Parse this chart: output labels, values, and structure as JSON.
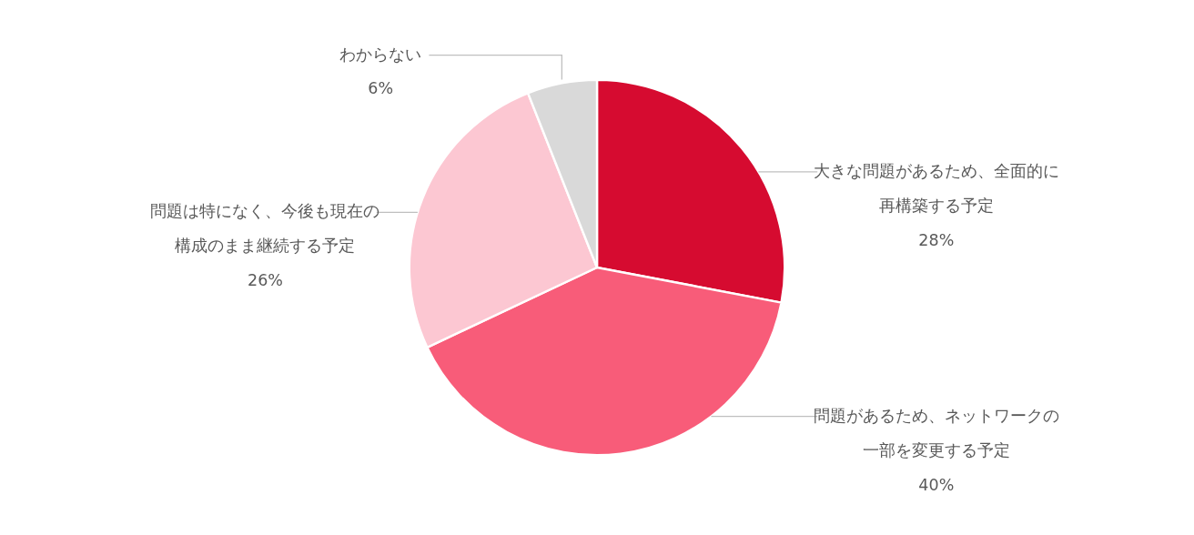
{
  "chart_data": {
    "type": "pie",
    "categories": [
      "大きな問題があるため、全面的に再構築する予定",
      "問題があるため、ネットワークの一部を変更する予定",
      "問題は特になく、今後も現在の構成のまま継続する予定",
      "わからない"
    ],
    "values": [
      28,
      40,
      26,
      6
    ],
    "colors": [
      "#d60b30",
      "#f85c79",
      "#fcc7d2",
      "#d9d9d9"
    ],
    "value_labels": [
      "28%",
      "40%",
      "26%",
      "6%"
    ]
  }
}
